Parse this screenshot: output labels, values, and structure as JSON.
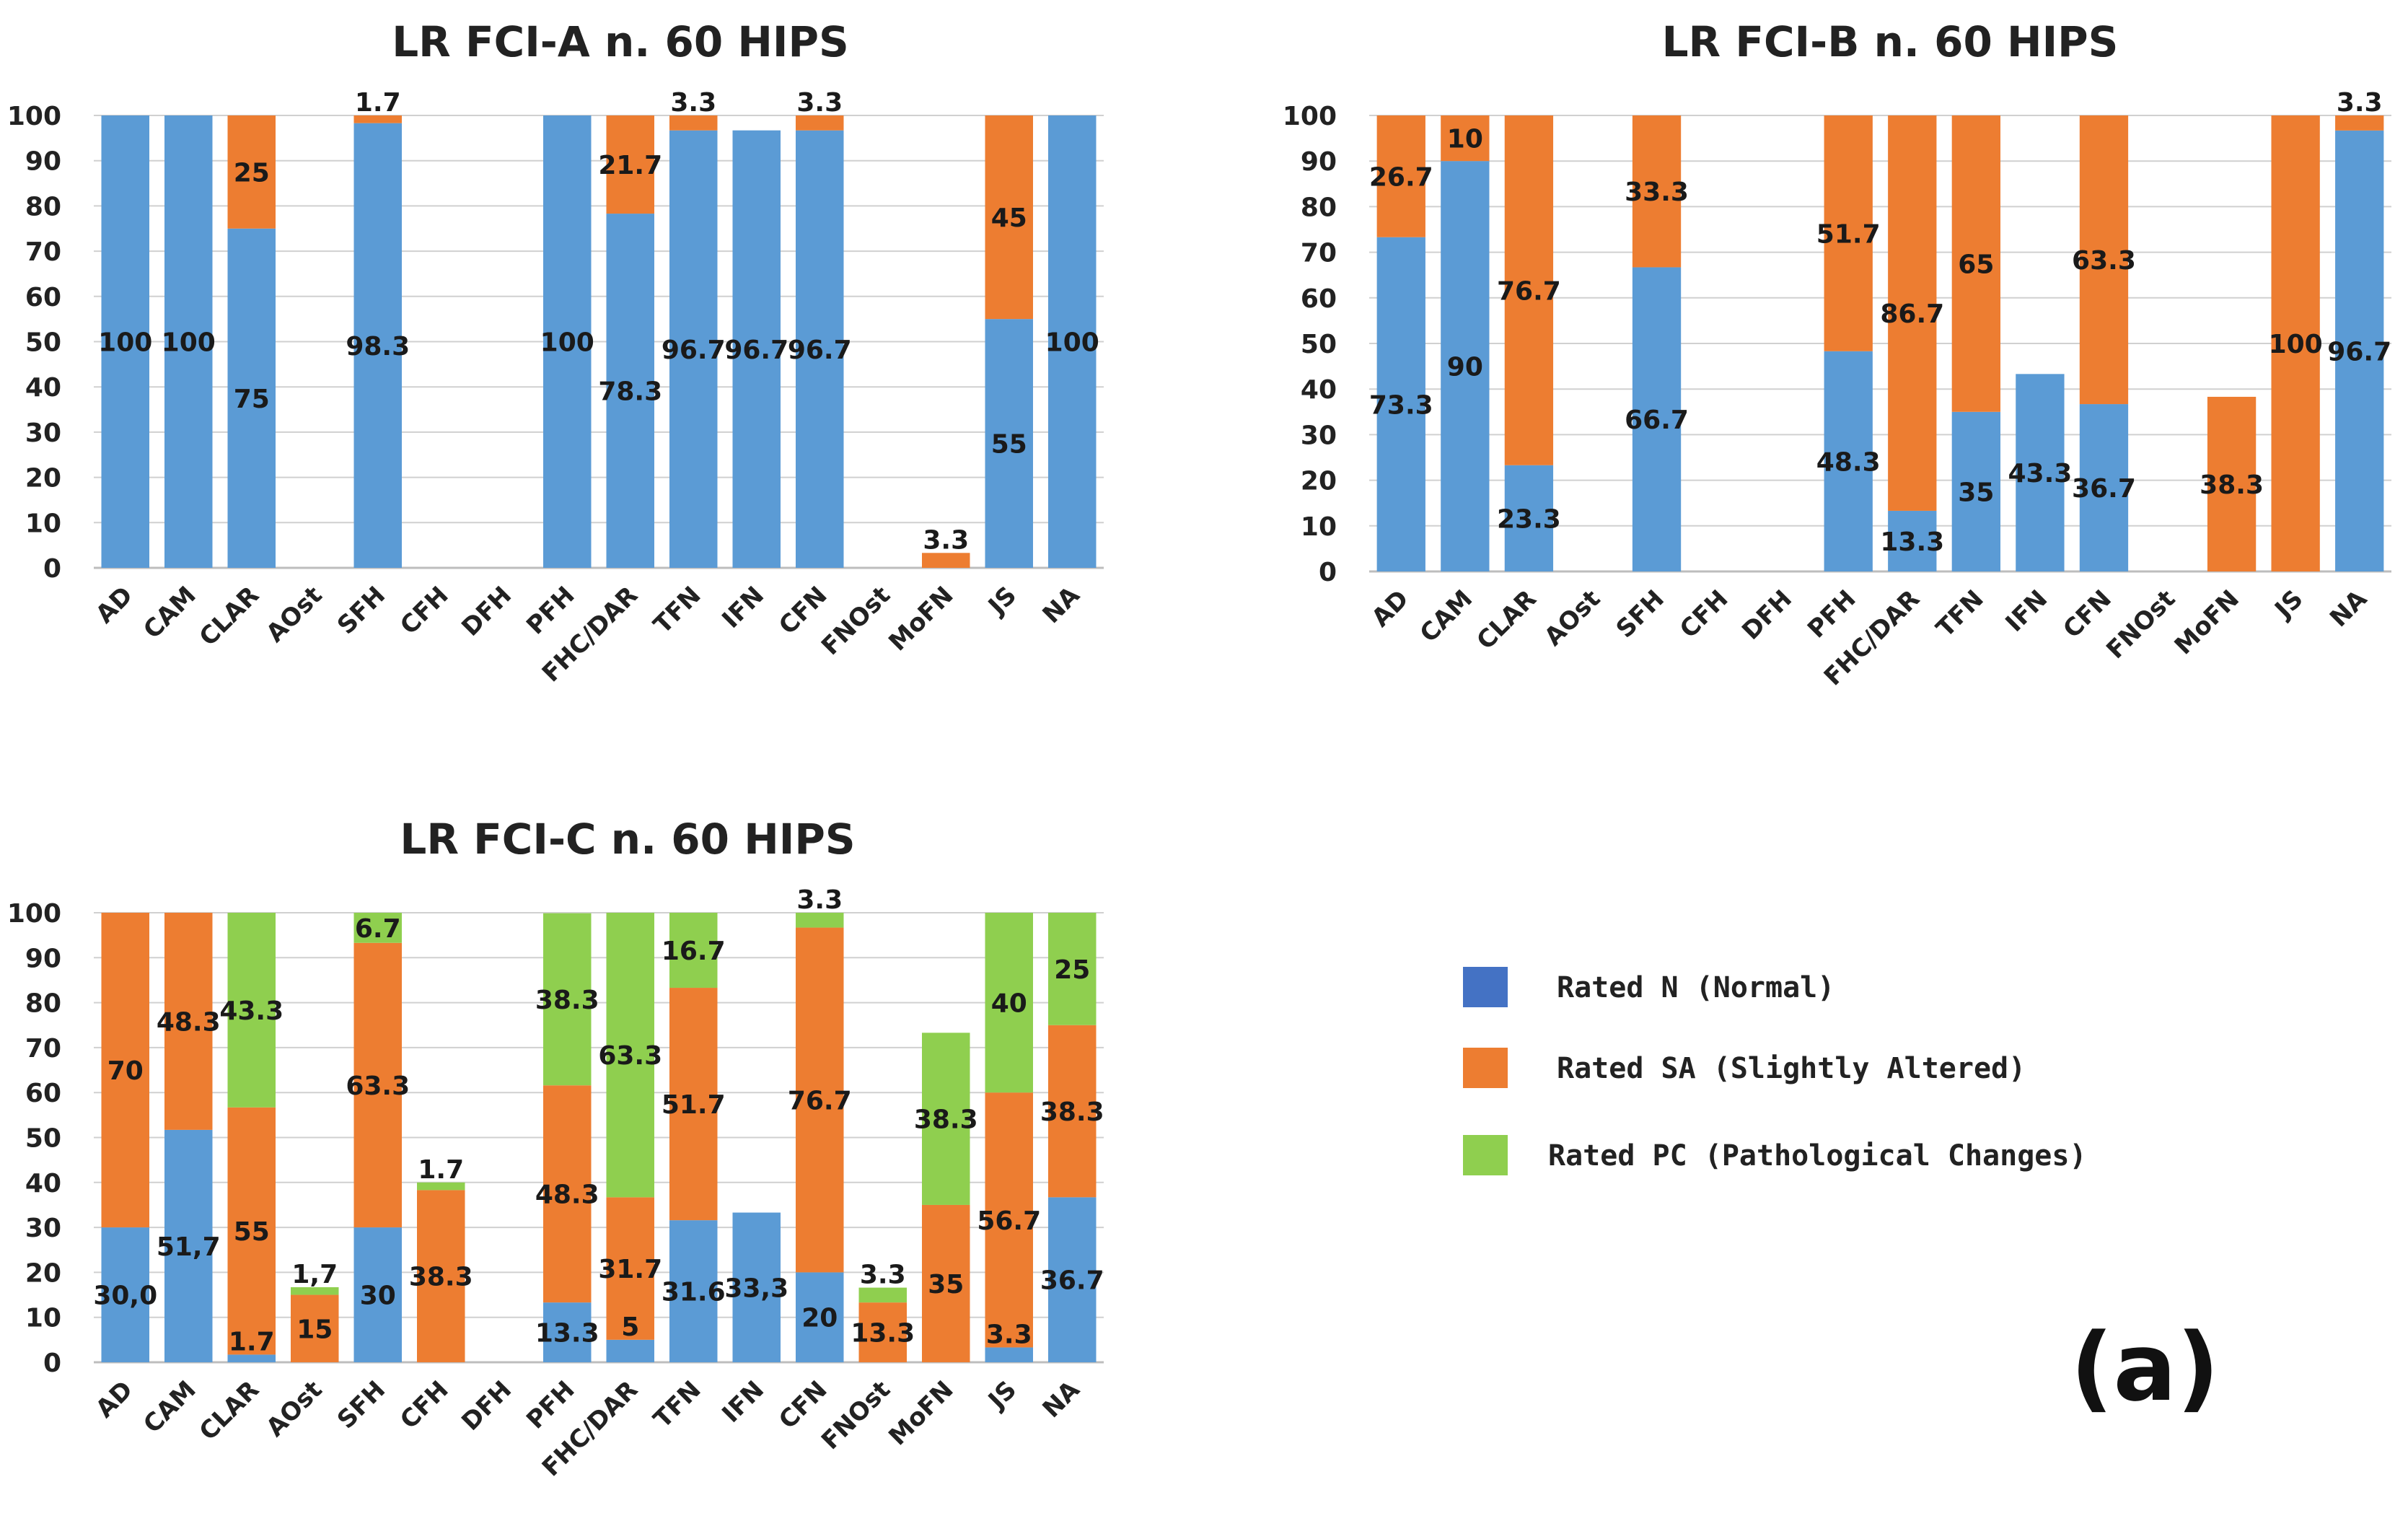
{
  "colors": {
    "N": "#5b9bd5",
    "SA": "#ed7d31",
    "PC": "#8fcf4f",
    "legend_N": "#4472c4"
  },
  "figure_label": "(a)",
  "legend": [
    {
      "key": "N",
      "label": "Rated N (Normal)"
    },
    {
      "key": "SA",
      "label": "Rated SA (Slightly Altered)"
    },
    {
      "key": "PC",
      "label": "Rated PC (Pathological Changes)"
    }
  ],
  "chart_data": [
    {
      "type": "bar",
      "stacked": true,
      "title": "LR FCI-A n. 60 HIPS",
      "categories": [
        "AD",
        "CAM",
        "CLAR",
        "AOst",
        "SFH",
        "CFH",
        "DFH",
        "PFH",
        "FHC/DAR",
        "TFN",
        "IFN",
        "CFN",
        "FNOst",
        "MoFN",
        "JS",
        "NA"
      ],
      "ylim": [
        0,
        100
      ],
      "yticks": [
        "0",
        "10",
        "20",
        "30",
        "40",
        "50",
        "60",
        "70",
        "80",
        "90",
        "100"
      ],
      "series": [
        {
          "name": "Rated N (Normal)",
          "key": "N",
          "values": [
            100,
            100,
            75,
            0,
            98.3,
            0,
            0,
            100,
            78.3,
            96.7,
            96.7,
            96.7,
            0,
            0,
            55,
            100
          ],
          "labels": [
            "100",
            "100",
            "75",
            "",
            "98.3",
            "",
            "",
            "100",
            "78.3",
            "96.7",
            "96.7",
            "96.7",
            "",
            "",
            "55",
            "100"
          ]
        },
        {
          "name": "Rated SA (Slightly Altered)",
          "key": "SA",
          "values": [
            0,
            0,
            25,
            0,
            1.7,
            0,
            0,
            0,
            21.7,
            3.3,
            0,
            3.3,
            0,
            3.3,
            45,
            0
          ],
          "labels": [
            "",
            "",
            "25",
            "",
            "1.7",
            "",
            "",
            "",
            "21.7",
            "3.3",
            "",
            "3.3",
            "",
            "3.3",
            "45",
            ""
          ]
        },
        {
          "name": "Rated PC (Pathological Changes)",
          "key": "PC",
          "values": [
            0,
            0,
            0,
            0,
            0,
            0,
            0,
            0,
            0,
            0,
            0,
            0,
            0,
            0,
            0,
            0
          ],
          "labels": [
            "",
            "",
            "",
            "",
            "",
            "",
            "",
            "",
            "",
            "",
            "",
            "",
            "",
            "",
            "",
            ""
          ]
        }
      ]
    },
    {
      "type": "bar",
      "stacked": true,
      "title": "LR FCI-B n. 60 HIPS",
      "categories": [
        "AD",
        "CAM",
        "CLAR",
        "AOst",
        "SFH",
        "CFH",
        "DFH",
        "PFH",
        "FHC/DAR",
        "TFN",
        "IFN",
        "CFN",
        "FNOst",
        "MoFN",
        "JS",
        "NA"
      ],
      "ylim": [
        0,
        100
      ],
      "yticks": [
        "0",
        "10",
        "20",
        "30",
        "40",
        "50",
        "60",
        "70",
        "80",
        "90",
        "100"
      ],
      "series": [
        {
          "name": "Rated N (Normal)",
          "key": "N",
          "values": [
            73.3,
            90,
            23.3,
            0,
            66.7,
            0,
            0,
            48.3,
            13.3,
            35,
            43.3,
            36.7,
            0,
            0,
            0,
            96.7
          ],
          "labels": [
            "73.3",
            "90",
            "23.3",
            "",
            "66.7",
            "",
            "",
            "48.3",
            "13.3",
            "35",
            "43.3",
            "36.7",
            "",
            "",
            "",
            "96.7"
          ]
        },
        {
          "name": "Rated SA (Slightly Altered)",
          "key": "SA",
          "values": [
            26.7,
            10,
            76.7,
            0,
            33.3,
            0,
            0,
            51.7,
            86.7,
            65,
            0,
            63.3,
            0,
            38.3,
            100,
            3.3
          ],
          "labels": [
            "26.7",
            "10",
            "76.7",
            "",
            "33.3",
            "",
            "",
            "51.7",
            "86.7",
            "65",
            "",
            "63.3",
            "",
            "38.3",
            "100",
            "3.3"
          ]
        },
        {
          "name": "Rated PC (Pathological Changes)",
          "key": "PC",
          "values": [
            0,
            0,
            0,
            0,
            0,
            0,
            0,
            0,
            0,
            0,
            0,
            0,
            0,
            0,
            0,
            0
          ],
          "labels": [
            "",
            "",
            "",
            "",
            "",
            "",
            "",
            "",
            "",
            "",
            "",
            "",
            "",
            "",
            "",
            ""
          ]
        }
      ]
    },
    {
      "type": "bar",
      "stacked": true,
      "title": "LR FCI-C n. 60 HIPS",
      "categories": [
        "AD",
        "CAM",
        "CLAR",
        "AOst",
        "SFH",
        "CFH",
        "DFH",
        "PFH",
        "FHC/DAR",
        "TFN",
        "IFN",
        "CFN",
        "FNOst",
        "MoFN",
        "JS",
        "NA"
      ],
      "ylim": [
        0,
        100
      ],
      "yticks": [
        "0",
        "10",
        "20",
        "30",
        "40",
        "50",
        "60",
        "70",
        "80",
        "90",
        "100"
      ],
      "series": [
        {
          "name": "Rated N (Normal)",
          "key": "N",
          "values": [
            30,
            51.7,
            1.7,
            0,
            30,
            0,
            0,
            13.3,
            5,
            31.6,
            33.3,
            20,
            0,
            0,
            3.3,
            36.7
          ],
          "labels": [
            "30,0",
            "51,7",
            "1.7",
            "",
            "30",
            "",
            "",
            "13.3",
            "5",
            "31.6",
            "33,3",
            "20",
            "",
            "",
            "3.3",
            "36.7"
          ]
        },
        {
          "name": "Rated SA (Slightly Altered)",
          "key": "SA",
          "values": [
            70,
            48.3,
            55,
            15,
            63.3,
            38.3,
            0,
            48.3,
            31.7,
            51.7,
            0,
            76.7,
            13.3,
            35,
            56.7,
            38.3
          ],
          "labels": [
            "70",
            "48.3",
            "55",
            "15",
            "63.3",
            "38.3",
            "",
            "48.3",
            "31.7",
            "51.7",
            "",
            "76.7",
            "13.3",
            "35",
            "56.7",
            "38.3"
          ]
        },
        {
          "name": "Rated PC (Pathological Changes)",
          "key": "PC",
          "values": [
            0,
            0,
            43.3,
            1.7,
            6.7,
            1.7,
            0,
            38.3,
            63.3,
            16.7,
            0,
            3.3,
            3.3,
            38.3,
            40,
            25
          ],
          "labels": [
            "",
            "",
            "43.3",
            "1,7",
            "6.7",
            "1.7",
            "",
            "38.3",
            "63.3",
            "16.7",
            "",
            "3.3",
            "3.3",
            "38.3",
            "40",
            "25"
          ]
        }
      ]
    }
  ]
}
